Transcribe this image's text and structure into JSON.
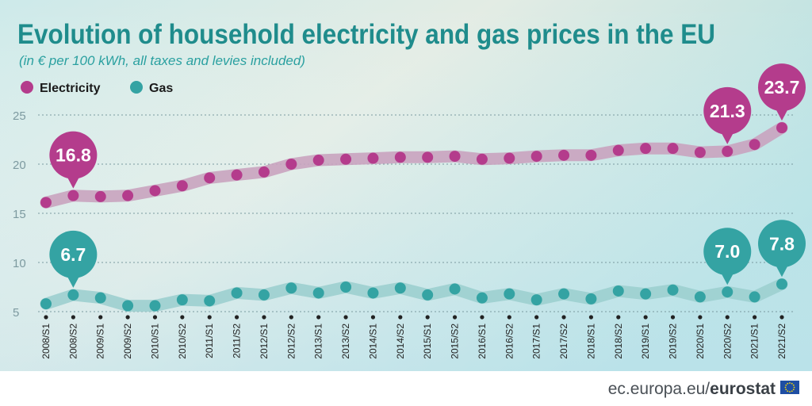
{
  "chart_data": {
    "type": "line",
    "title": "Evolution of household electricity and gas prices in the EU",
    "subtitle": "(in € per 100 kWh, all taxes and levies included)",
    "xlabel": "",
    "ylabel": "",
    "ylim": [
      5,
      25
    ],
    "yticks": [
      "5",
      "10",
      "15",
      "20",
      "25"
    ],
    "grid": true,
    "legend_position": "top-left",
    "categories": [
      "2008/S1",
      "2008/S2",
      "2009/S1",
      "2009/S2",
      "2010/S1",
      "2010/S2",
      "2011/S1",
      "2011/S2",
      "2012/S1",
      "2012/S2",
      "2013/S1",
      "2013/S2",
      "2014/S1",
      "2014/S2",
      "2015/S1",
      "2015/S2",
      "2016/S1",
      "2016/S2",
      "2017/S1",
      "2017/S2",
      "2018/S1",
      "2018/S2",
      "2019/S1",
      "2019/S2",
      "2020/S1",
      "2020/S2",
      "2021/S1",
      "2021/S2"
    ],
    "series": [
      {
        "name": "Electricity",
        "color": "#b43c8c",
        "band_color": "#c9a3bf",
        "values": [
          16.1,
          16.8,
          16.7,
          16.8,
          17.3,
          17.8,
          18.6,
          18.9,
          19.2,
          20.0,
          20.4,
          20.5,
          20.6,
          20.7,
          20.7,
          20.8,
          20.5,
          20.6,
          20.8,
          20.9,
          20.9,
          21.4,
          21.6,
          21.6,
          21.2,
          21.3,
          22.0,
          23.7
        ]
      },
      {
        "name": "Gas",
        "color": "#34a3a3",
        "band_color": "#9ccfcf",
        "values": [
          5.8,
          6.7,
          6.4,
          5.6,
          5.6,
          6.2,
          6.1,
          6.9,
          6.7,
          7.4,
          6.9,
          7.5,
          6.9,
          7.4,
          6.7,
          7.3,
          6.4,
          6.8,
          6.2,
          6.8,
          6.3,
          7.1,
          6.8,
          7.2,
          6.5,
          7.0,
          6.5,
          7.8
        ]
      }
    ],
    "annotations": [
      {
        "series": 0,
        "index": 1,
        "label": "16.8"
      },
      {
        "series": 0,
        "index": 25,
        "label": "21.3"
      },
      {
        "series": 0,
        "index": 27,
        "label": "23.7"
      },
      {
        "series": 1,
        "index": 1,
        "label": "6.7"
      },
      {
        "series": 1,
        "index": 25,
        "label": "7.0"
      },
      {
        "series": 1,
        "index": 27,
        "label": "7.8"
      }
    ]
  },
  "footer": {
    "source_prefix": "ec.europa.eu/",
    "source_brand": "eurostat"
  },
  "colors": {
    "title": "#1f8c8c",
    "subtitle": "#2aa0a0",
    "grid": "#7a9aa0",
    "tick_text": "#7d9aa0",
    "flag_blue": "#1f4ea3",
    "flag_star": "#ffdd00"
  }
}
